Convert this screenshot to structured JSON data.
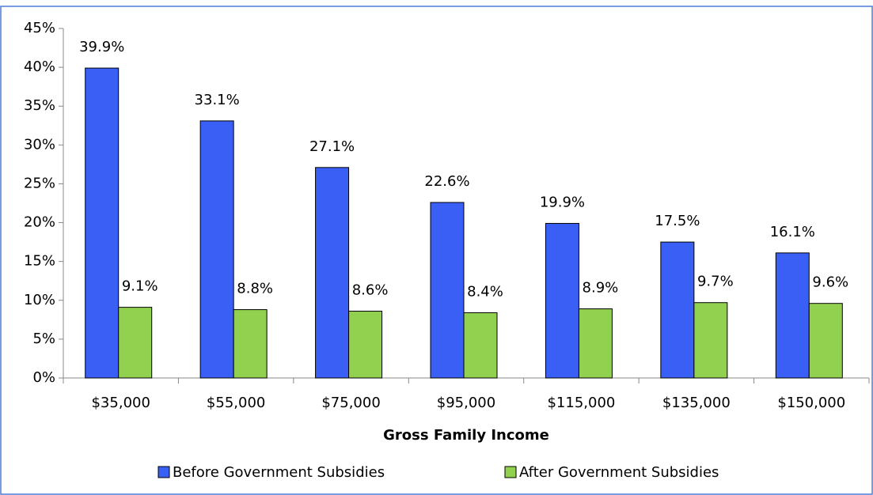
{
  "chart_data": {
    "type": "bar",
    "categories": [
      "$35,000",
      "$55,000",
      "$75,000",
      "$95,000",
      "$115,000",
      "$135,000",
      "$150,000"
    ],
    "xlabel": "Gross Family Income",
    "series": [
      {
        "name": "Before Government Subsidies",
        "color": "#3a5ff4",
        "values": [
          39.9,
          33.1,
          27.1,
          22.6,
          19.9,
          17.5,
          16.1
        ],
        "value_labels": [
          "39.9%",
          "33.1%",
          "27.1%",
          "22.6%",
          "19.9%",
          "17.5%",
          "16.1%"
        ]
      },
      {
        "name": "After Government Subsidies",
        "color": "#92d050",
        "values": [
          9.1,
          8.8,
          8.6,
          8.4,
          8.9,
          9.7,
          9.6
        ],
        "value_labels": [
          "9.1%",
          "8.8%",
          "8.6%",
          "8.4%",
          "8.9%",
          "9.7%",
          "9.6%"
        ]
      }
    ],
    "ylim": [
      0,
      45
    ],
    "yticks": [
      {
        "value": 0,
        "label": "0%"
      },
      {
        "value": 5,
        "label": "5%"
      },
      {
        "value": 10,
        "label": "10%"
      },
      {
        "value": 15,
        "label": "15%"
      },
      {
        "value": 20,
        "label": "20%"
      },
      {
        "value": 25,
        "label": "25%"
      },
      {
        "value": 30,
        "label": "30%"
      },
      {
        "value": 35,
        "label": "35%"
      },
      {
        "value": 40,
        "label": "40%"
      },
      {
        "value": 45,
        "label": "45%"
      }
    ],
    "legend": "bottom"
  }
}
